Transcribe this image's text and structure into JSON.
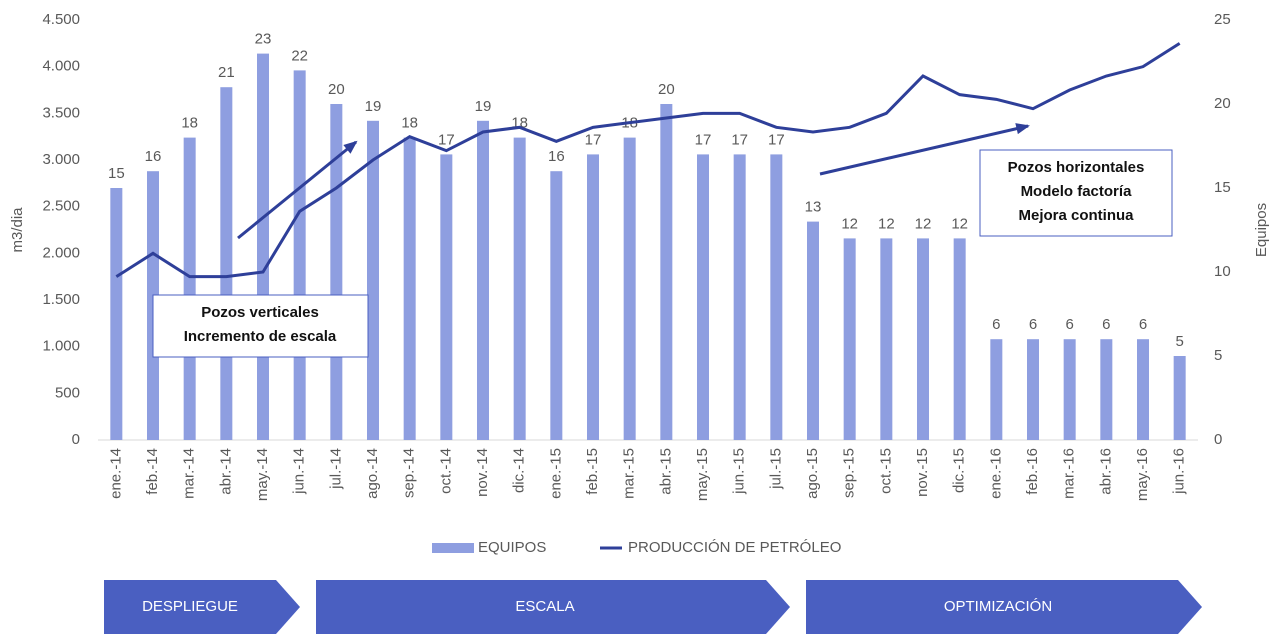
{
  "chart_data": {
    "type": "bar-line",
    "categories": [
      "ene.-14",
      "feb.-14",
      "mar.-14",
      "abr.-14",
      "may.-14",
      "jun.-14",
      "jul.-14",
      "ago.-14",
      "sep.-14",
      "oct.-14",
      "nov.-14",
      "dic.-14",
      "ene.-15",
      "feb.-15",
      "mar.-15",
      "abr.-15",
      "may.-15",
      "jun.-15",
      "jul.-15",
      "ago.-15",
      "sep.-15",
      "oct.-15",
      "nov.-15",
      "dic.-15",
      "ene.-16",
      "feb.-16",
      "mar.-16",
      "abr.-16",
      "may.-16",
      "jun.-16"
    ],
    "series": [
      {
        "name": "EQUIPOS",
        "type": "bar",
        "axis": "y2",
        "color": "#8e9ee0",
        "values": [
          15,
          16,
          18,
          21,
          23,
          22,
          20,
          19,
          18,
          17,
          19,
          18,
          16,
          17,
          18,
          20,
          17,
          17,
          17,
          13,
          12,
          12,
          12,
          12,
          6,
          6,
          6,
          6,
          6,
          5
        ]
      },
      {
        "name": "PRODUCCIÓN DE PETRÓLEO",
        "type": "line",
        "color": "#2e3f99",
        "values": [
          1750,
          2000,
          1750,
          1750,
          1800,
          2450,
          2700,
          3000,
          3250,
          3100,
          3300,
          3350,
          3200,
          3350,
          3400,
          3450,
          3500,
          3500,
          3350,
          3300,
          3350,
          3500,
          3900,
          3700,
          3650,
          3550,
          3750,
          3900,
          4000,
          4250
        ]
      }
    ],
    "ylabel": "m3/dia",
    "y2label": "Equipos",
    "ylim": [
      0,
      4500
    ],
    "yticks": [
      0,
      500,
      {
        "value": 1000,
        "label": "1.000"
      },
      {
        "value": 1500,
        "label": "1.500"
      },
      {
        "value": 2000,
        "label": "2.000"
      },
      {
        "value": 2500,
        "label": "2.500"
      },
      {
        "value": 3000,
        "label": "3.000"
      },
      {
        "value": 3500,
        "label": "3.500"
      },
      {
        "value": 4000,
        "label": "4.000"
      },
      {
        "value": 4500,
        "label": "4.500"
      }
    ],
    "y2lim": [
      0,
      25
    ],
    "y2ticks": [
      0,
      5,
      10,
      15,
      20,
      25
    ],
    "annotations": [
      {
        "lines": [
          "Pozos verticales",
          "Incremento de escala"
        ]
      },
      {
        "lines": [
          "Pozos horizontales",
          "Modelo factoría",
          "Mejora continua"
        ]
      }
    ],
    "phases": [
      "DESPLIEGUE",
      "ESCALA",
      "OPTIMIZACIÓN"
    ]
  }
}
